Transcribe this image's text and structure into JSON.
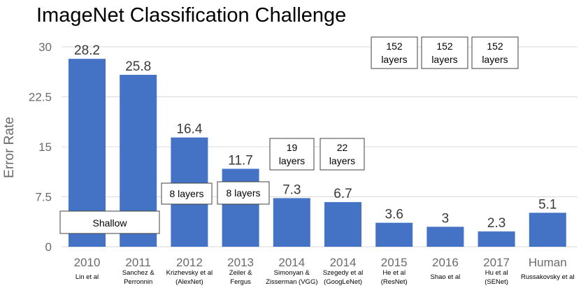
{
  "chart_data": {
    "type": "bar",
    "title": "ImageNet Classification Challenge",
    "ylabel": "Error Rate",
    "ylim": [
      0,
      30
    ],
    "yticks": [
      "0",
      "7.5",
      "15",
      "22.5",
      "30"
    ],
    "grid": true,
    "categories": [
      "2010",
      "2011",
      "2012",
      "2013",
      "2014",
      "2014",
      "2015",
      "2016",
      "2017",
      "Human"
    ],
    "subtitles": [
      [
        "Lin et al"
      ],
      [
        "Sanchez &",
        "Perronnin"
      ],
      [
        "Krizhevsky et al",
        "(AlexNet)"
      ],
      [
        "Zeiler &",
        "Fergus"
      ],
      [
        "Simonyan &",
        "Zisserman (VGG)"
      ],
      [
        "Szegedy et al",
        "(GoogLeNet)"
      ],
      [
        "He et al",
        "(ResNet)"
      ],
      [
        "Shao et al"
      ],
      [
        "Hu et al",
        "(SENet)"
      ],
      [
        "Russakovsky et al"
      ]
    ],
    "values": [
      28.2,
      25.8,
      16.4,
      11.7,
      7.3,
      6.7,
      3.6,
      3,
      2.3,
      5.1
    ],
    "value_labels": [
      "28.2",
      "25.8",
      "16.4",
      "11.7",
      "7.3",
      "6.7",
      "3.6",
      "3",
      "2.3",
      "5.1"
    ],
    "annotations": [
      {
        "lines": [
          "Shallow"
        ]
      },
      {
        "lines": [
          "8 layers"
        ]
      },
      {
        "lines": [
          "8 layers"
        ]
      },
      {
        "lines": [
          "19",
          "layers"
        ]
      },
      {
        "lines": [
          "22",
          "layers"
        ]
      },
      {
        "lines": [
          "152",
          "layers"
        ]
      },
      {
        "lines": [
          "152",
          "layers"
        ]
      },
      {
        "lines": [
          "152",
          "layers"
        ]
      }
    ],
    "colors": {
      "bar": "#4472c4",
      "grid": "#d9d9d9",
      "axis_text": "#6b6b6b"
    }
  }
}
